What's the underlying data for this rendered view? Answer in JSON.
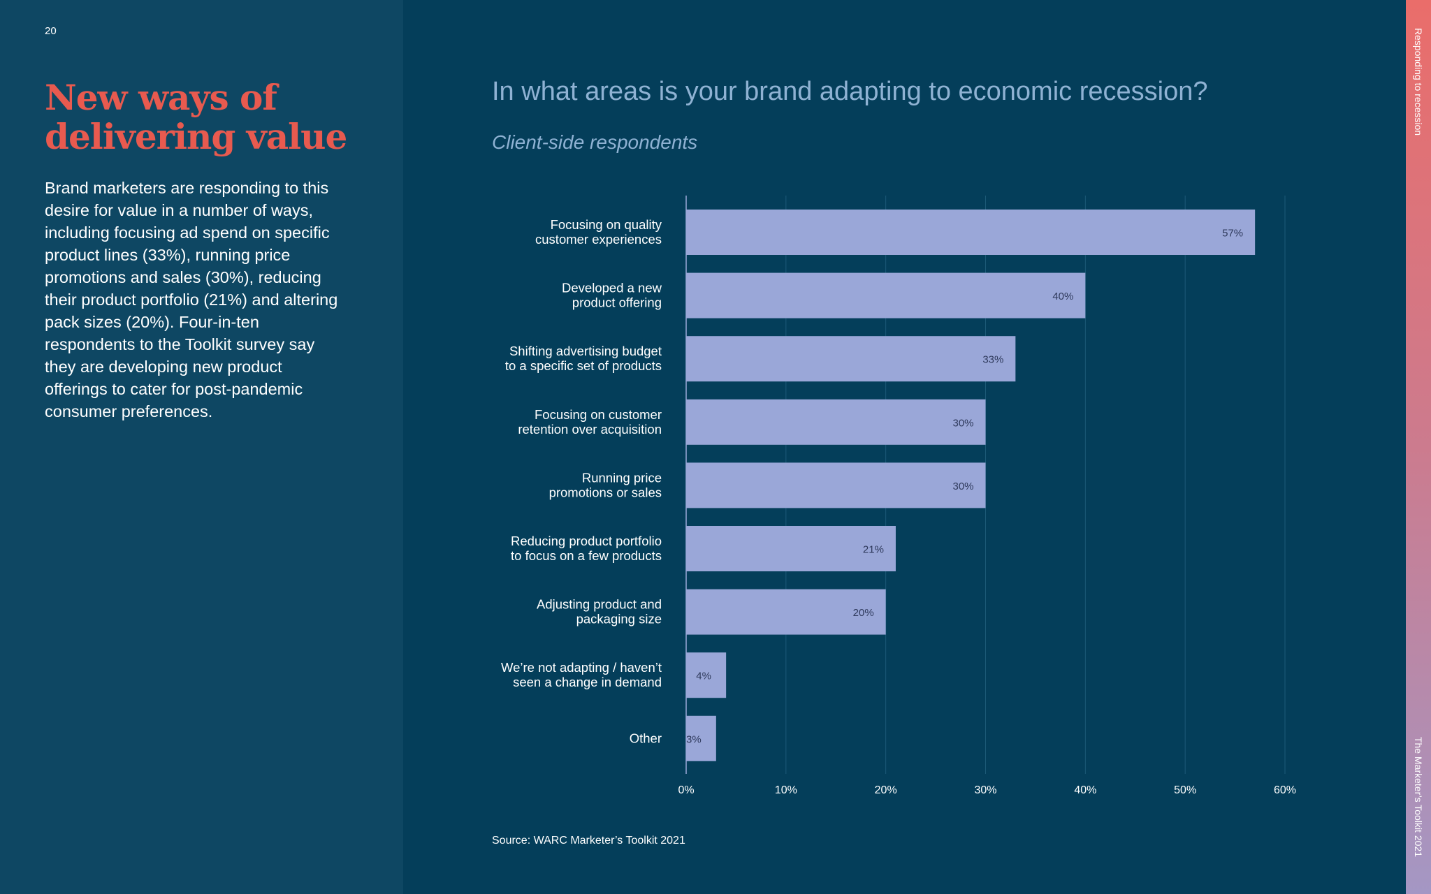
{
  "page": {
    "number": "20",
    "title_line1": "New ways of",
    "title_line2": "delivering value",
    "body": "Brand marketers are responding to this desire for value in a number of ways, including focusing ad spend on specific product lines (33%), running price promotions and sales (30%), reducing their product portfolio (21%) and altering pack sizes (20%). Four-in-ten respondents to the Toolkit survey say they are developing new product offerings to cater for post-pandemic consumer preferences.",
    "source": "Source: WARC Marketer’s Toolkit 2021",
    "side_top": "Responding to recession",
    "side_bottom": "The Marketer’s Toolkit 2021"
  },
  "colors": {
    "background": "#043e5a",
    "left_panel": "#0e4763",
    "accent": "#e85a4f",
    "bar": "#9aa7d8",
    "title": "#8fb2d3"
  },
  "chart_data": {
    "type": "bar",
    "orientation": "horizontal",
    "title": "In what areas is your brand adapting to economic recession?",
    "subtitle": "Client-side respondents",
    "categories": [
      [
        "Focusing on quality",
        "customer experiences"
      ],
      [
        "Developed a new",
        "product offering"
      ],
      [
        "Shifting advertising budget",
        "to a specific set of products"
      ],
      [
        "Focusing on customer",
        "retention over acquisition"
      ],
      [
        "Running price",
        "promotions or sales"
      ],
      [
        "Reducing product portfolio",
        "to focus on a few products"
      ],
      [
        "Adjusting product and",
        "packaging size"
      ],
      [
        "We’re not adapting / haven’t",
        "seen a change in demand"
      ],
      [
        "Other"
      ]
    ],
    "values": [
      57,
      40,
      33,
      30,
      30,
      21,
      20,
      4,
      3
    ],
    "value_labels": [
      "57%",
      "40%",
      "33%",
      "30%",
      "30%",
      "21%",
      "20%",
      "4%",
      "3%"
    ],
    "xlim": [
      0,
      60
    ],
    "xticks": [
      0,
      10,
      20,
      30,
      40,
      50,
      60
    ],
    "xtick_labels": [
      "0%",
      "10%",
      "20%",
      "30%",
      "40%",
      "50%",
      "60%"
    ],
    "grid": true,
    "legend": "none"
  }
}
